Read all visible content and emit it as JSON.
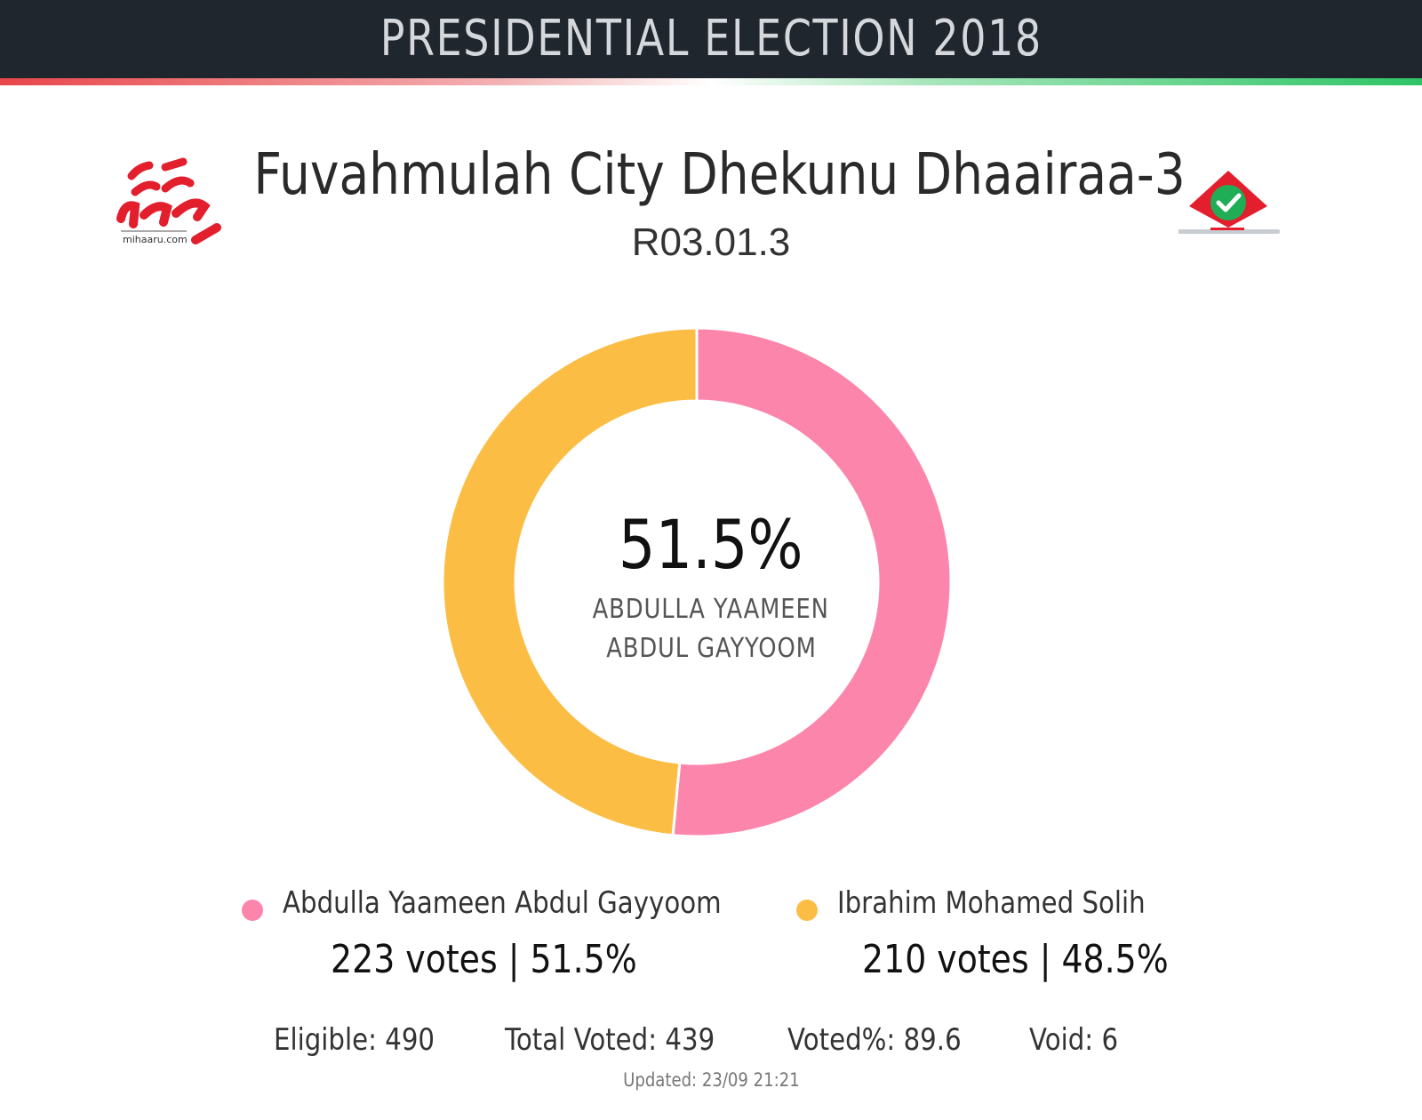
{
  "header": {
    "title": "PRESIDENTIAL ELECTION 2018"
  },
  "logos": {
    "left": {
      "name": "mihaaru-logo",
      "text": "mihaaru.com",
      "color": "#e31e2d"
    },
    "right": {
      "name": "ballot-box-checkmark-logo",
      "colors": [
        "#e31e2d",
        "#1fae55",
        "#ffffff"
      ]
    }
  },
  "region": {
    "name": "Fuvahmulah City Dhekunu Dhaairaa-3",
    "code": "R03.01.3"
  },
  "center": {
    "percent": "51.5%",
    "candidate_line1": "ABDULLA YAAMEEN",
    "candidate_line2": "ABDUL GAYYOOM"
  },
  "chart_data": {
    "type": "pie",
    "variant": "donut",
    "series": [
      {
        "name": "Abdulla Yaameen Abdul Gayyoom",
        "votes": 223,
        "percent": 51.5,
        "color": "#fc86ab"
      },
      {
        "name": "Ibrahim Mohamed Solih",
        "votes": 210,
        "percent": 48.5,
        "color": "#fbbd44"
      }
    ]
  },
  "legend": [
    {
      "name": "Abdulla Yaameen Abdul Gayyoom",
      "stats": "223 votes | 51.5%",
      "color": "#fc86ab"
    },
    {
      "name": "Ibrahim Mohamed Solih",
      "stats": "210 votes | 48.5%",
      "color": "#fbbd44"
    }
  ],
  "stats": {
    "eligible": "Eligible: 490",
    "total_voted": "Total Voted: 439",
    "voted_pct": "Voted%: 89.6",
    "void": "Void: 6"
  },
  "updated": "Updated: 23/09 21:21"
}
